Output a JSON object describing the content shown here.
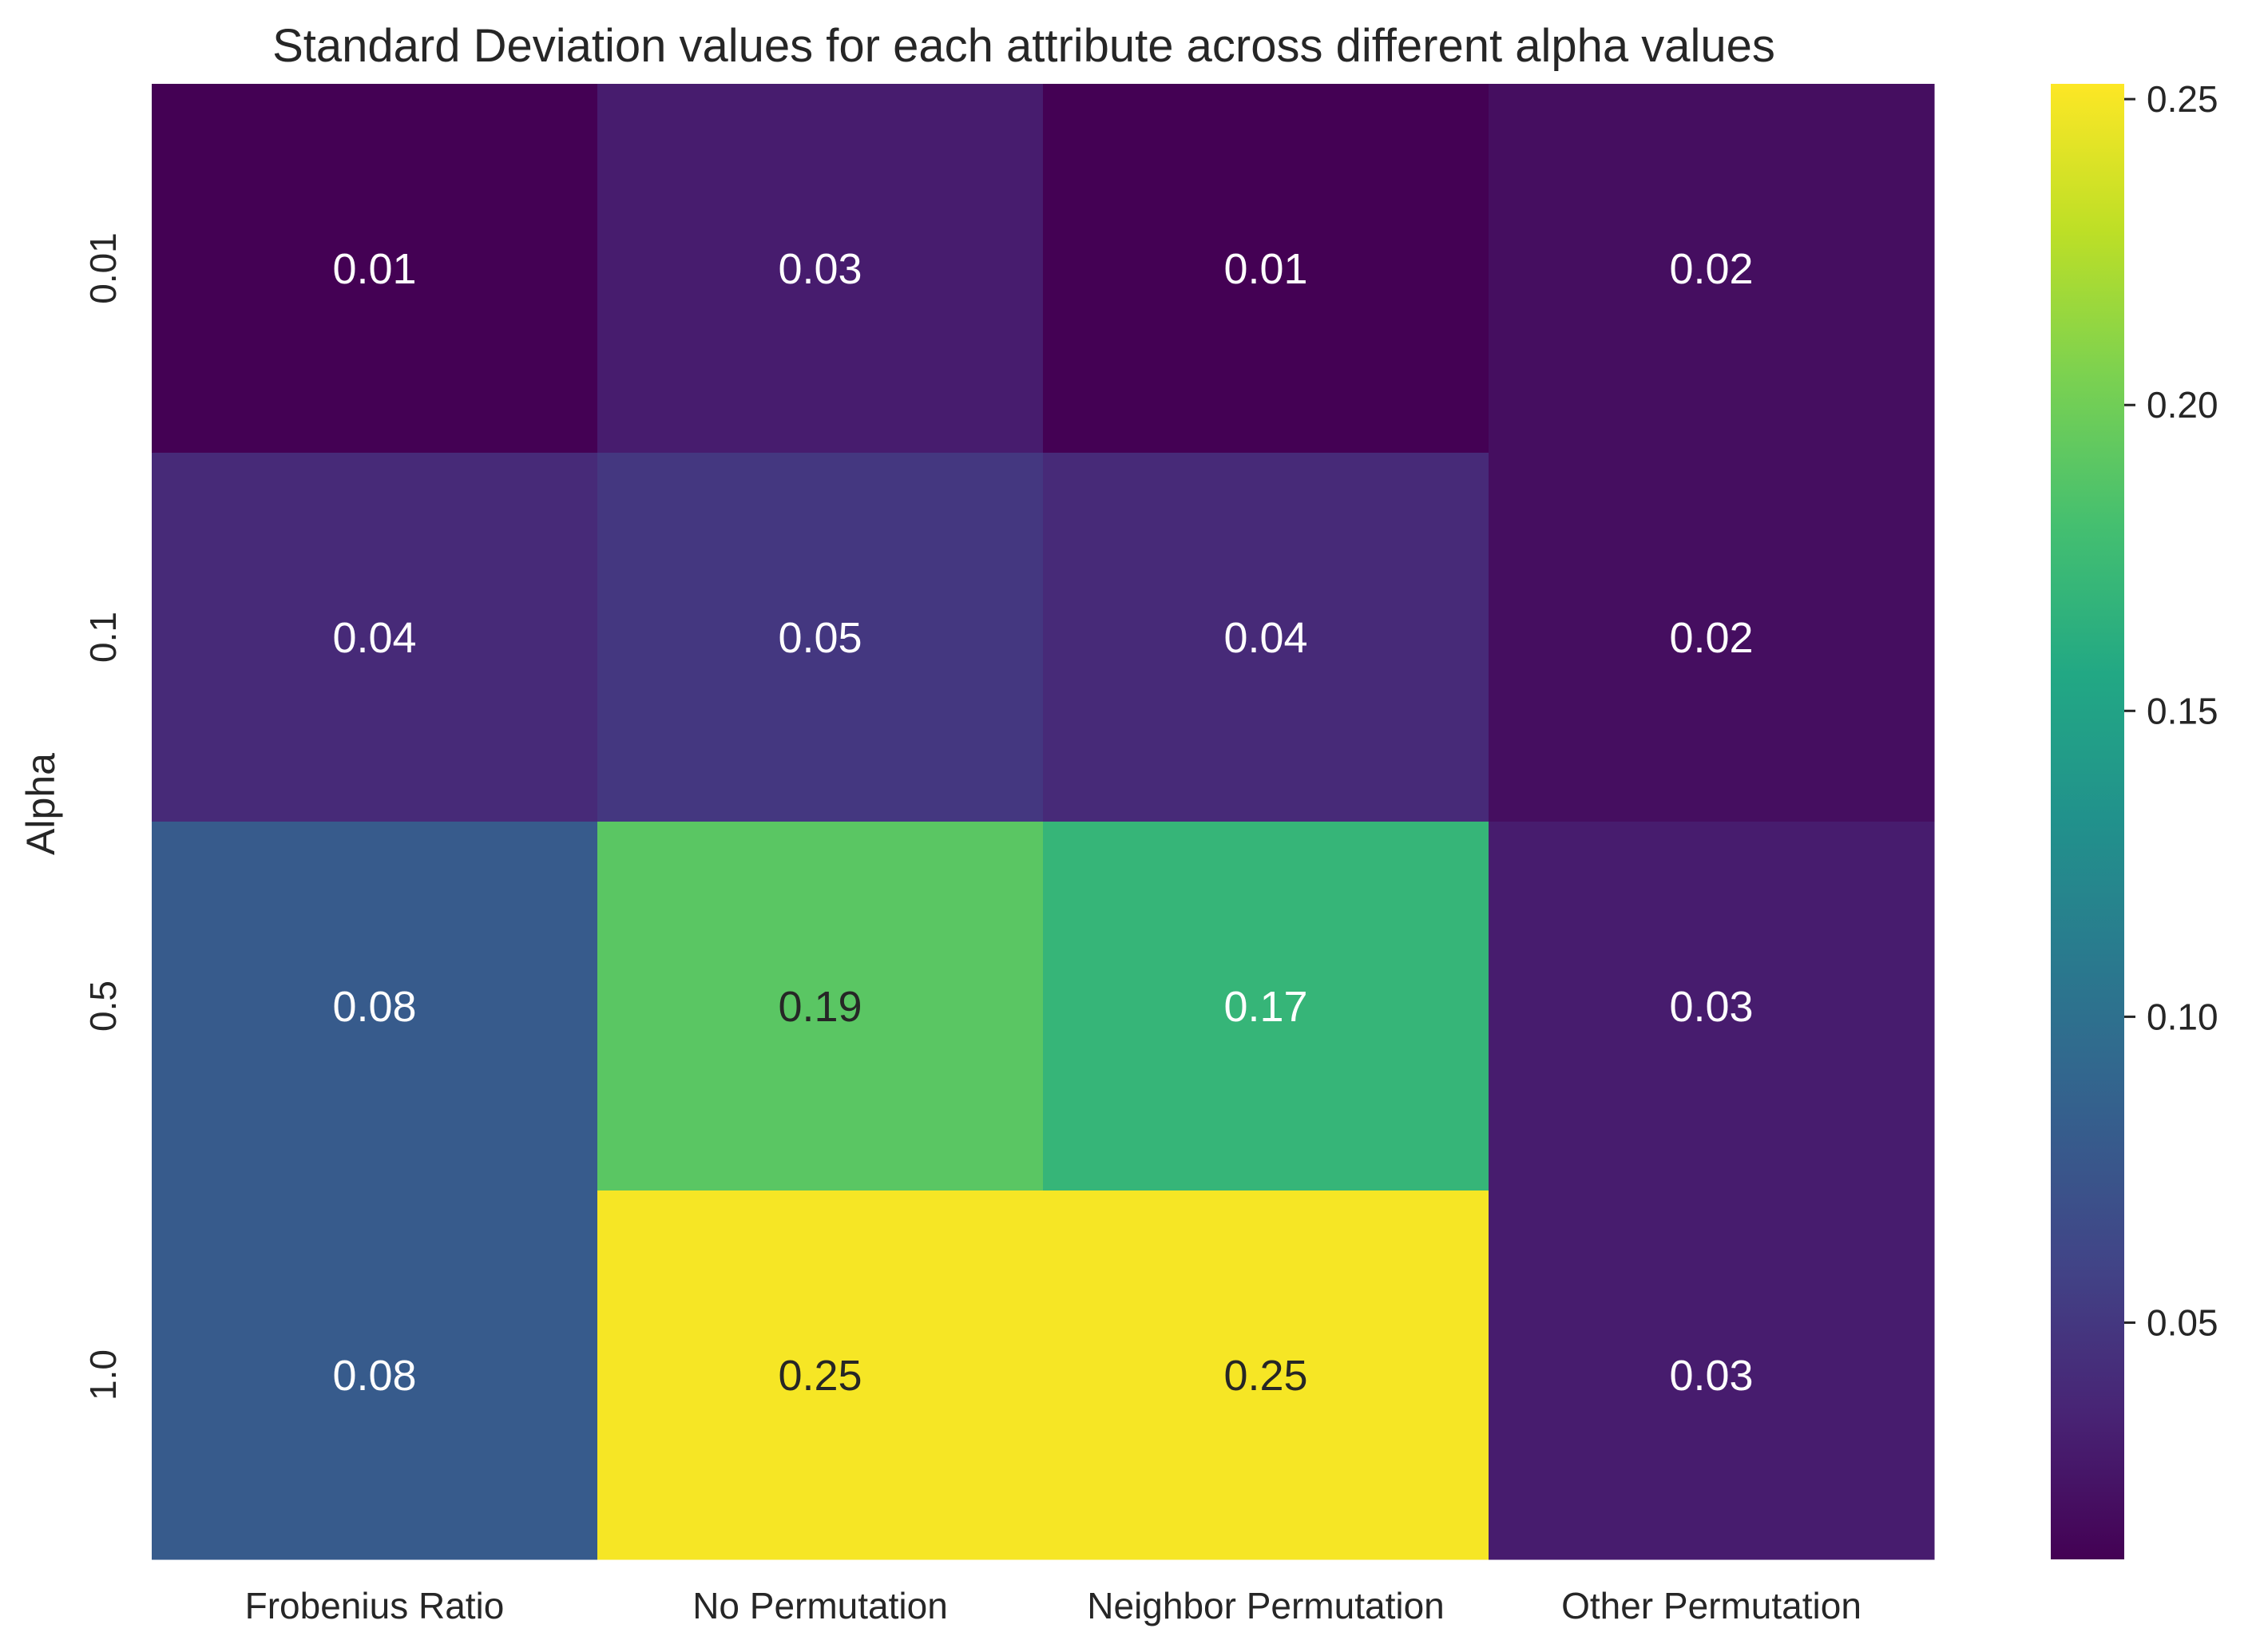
{
  "chart_data": {
    "type": "heatmap",
    "title": "Standard Deviation values for each attribute across different alpha values",
    "xlabel": "",
    "ylabel": "Alpha",
    "columns": [
      "Frobenius Ratio",
      "No Permutation",
      "Neighbor Permutation",
      "Other Permutation"
    ],
    "rows": [
      "0.01",
      "0.1",
      "0.5",
      "1.0"
    ],
    "values": [
      [
        0.01,
        0.03,
        0.01,
        0.02
      ],
      [
        0.04,
        0.05,
        0.04,
        0.02
      ],
      [
        0.08,
        0.19,
        0.17,
        0.03
      ],
      [
        0.08,
        0.25,
        0.25,
        0.03
      ]
    ],
    "annotations": [
      [
        "0.01",
        "0.03",
        "0.01",
        "0.02"
      ],
      [
        "0.04",
        "0.05",
        "0.04",
        "0.02"
      ],
      [
        "0.08",
        "0.19",
        "0.17",
        "0.03"
      ],
      [
        "0.08",
        "0.25",
        "0.25",
        "0.03"
      ]
    ],
    "colormap": "viridis",
    "vmin": 0.0113,
    "vmax": 0.2525,
    "colorbar_ticks": [
      0.05,
      0.1,
      0.15,
      0.2,
      0.25
    ],
    "colorbar_tick_labels": [
      "0.05",
      "0.10",
      "0.15",
      "0.20",
      "0.25"
    ],
    "grid": false,
    "colorbar_position": "right"
  }
}
